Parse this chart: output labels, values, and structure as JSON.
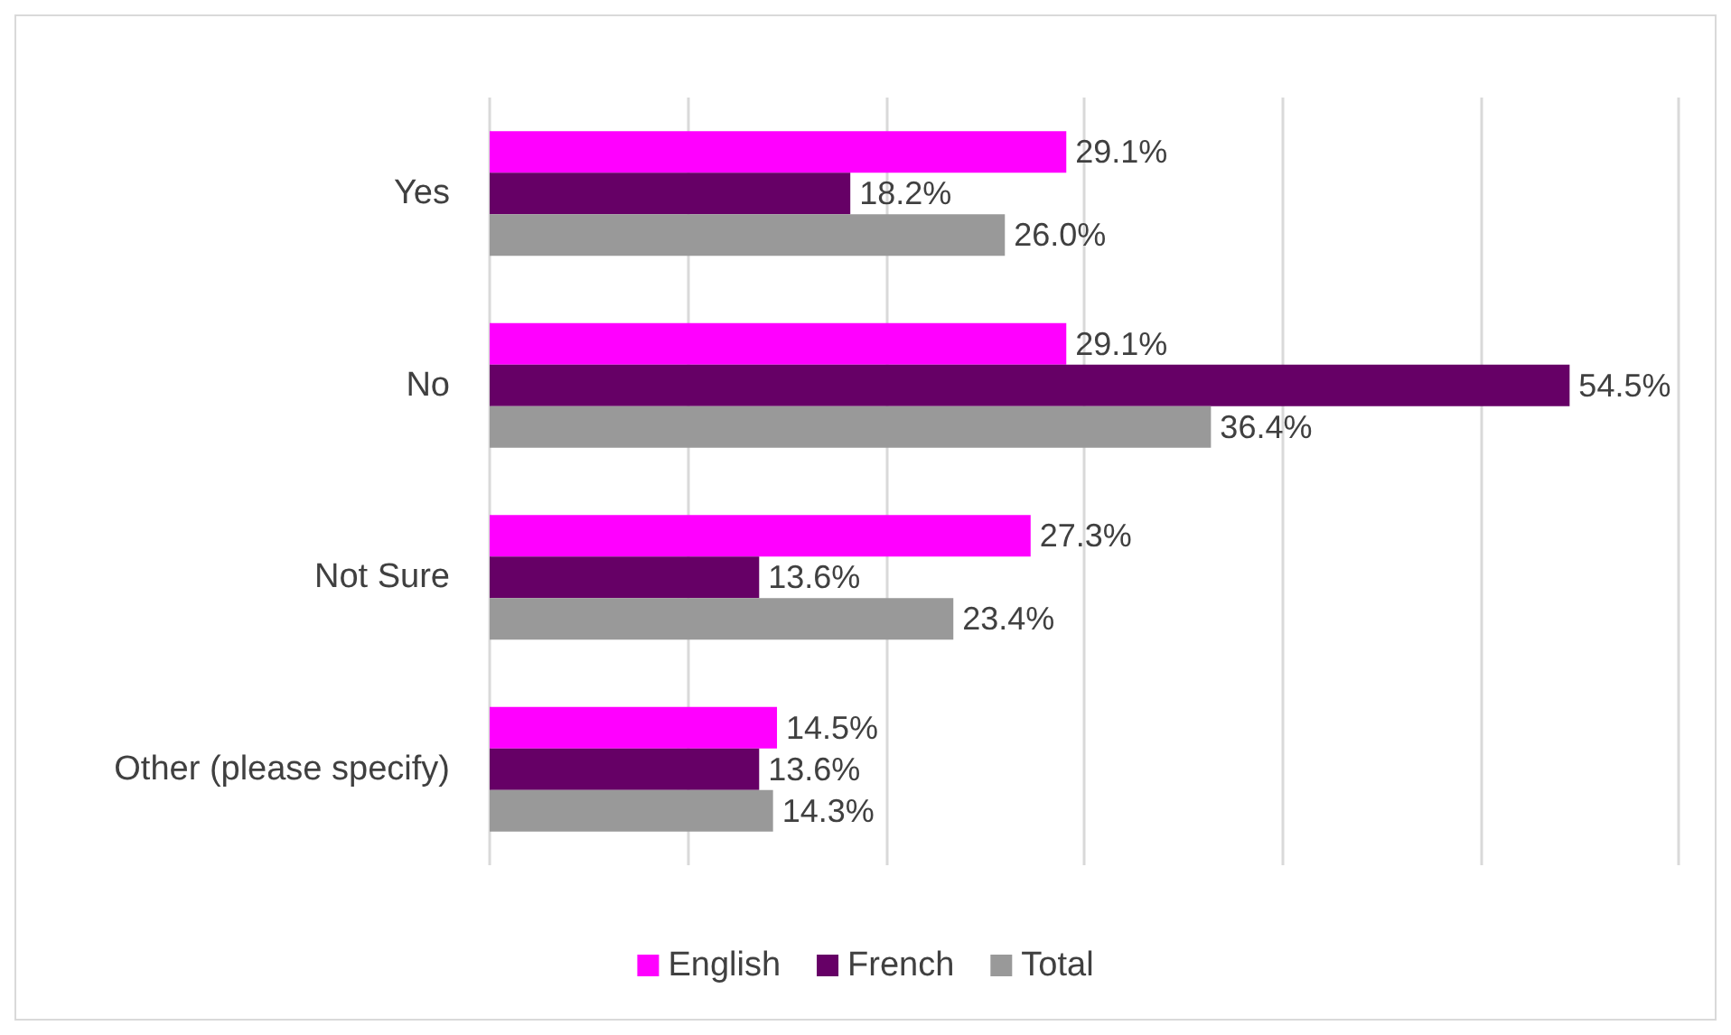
{
  "chart_data": {
    "type": "bar",
    "orientation": "horizontal",
    "categories": [
      "Yes",
      "No",
      "Not Sure",
      "Other (please specify)"
    ],
    "series": [
      {
        "name": "English",
        "color": "#ff00ff",
        "values": [
          29.1,
          29.1,
          27.3,
          14.5
        ],
        "value_labels": [
          "29.1%",
          "29.1%",
          "27.3%",
          "14.5%"
        ]
      },
      {
        "name": "French",
        "color": "#660066",
        "values": [
          18.2,
          54.5,
          13.6,
          13.6
        ],
        "value_labels": [
          "18.2%",
          "54.5%",
          "13.6%",
          "13.6%"
        ]
      },
      {
        "name": "Total",
        "color": "#999999",
        "values": [
          26.0,
          36.4,
          23.4,
          14.3
        ],
        "value_labels": [
          "26.0%",
          "36.4%",
          "23.4%",
          "14.3%"
        ]
      }
    ],
    "xlim": [
      0,
      60
    ],
    "xticks": [
      0,
      10,
      20,
      30,
      40,
      50,
      60
    ],
    "tick_labels": "y",
    "grid": "x",
    "legend": "bottom"
  }
}
